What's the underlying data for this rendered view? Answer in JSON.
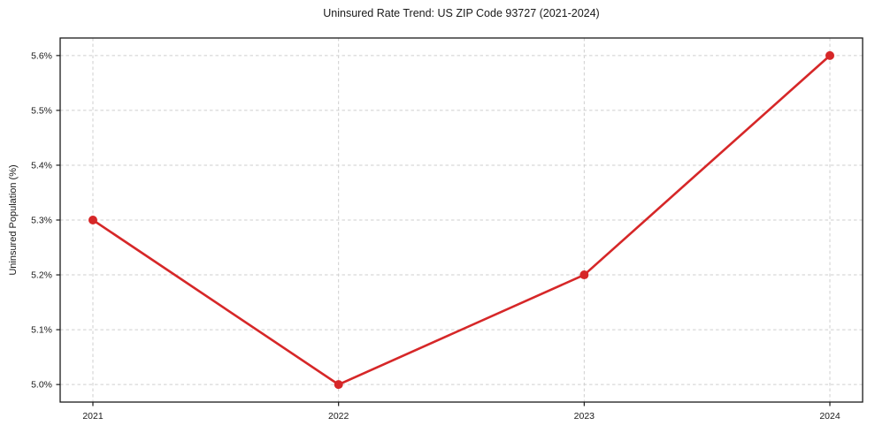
{
  "chart_data": {
    "type": "line",
    "title": "Uninsured Rate Trend: US ZIP Code 93727 (2021-2024)",
    "xlabel": "",
    "ylabel": "Uninsured Population (%)",
    "x": [
      "2021",
      "2022",
      "2023",
      "2024"
    ],
    "values": [
      5.3,
      5.0,
      5.2,
      5.6
    ],
    "unit": "%",
    "x_tick_labels": [
      "2021",
      "2022",
      "2023",
      "2024"
    ],
    "y_ticks": [
      5.0,
      5.1,
      5.2,
      5.3,
      5.4,
      5.5,
      5.6
    ],
    "y_tick_labels": [
      "5.0%",
      "5.1%",
      "5.2%",
      "5.3%",
      "5.4%",
      "5.5%",
      "5.6%"
    ],
    "ylim": [
      4.968,
      5.632
    ],
    "grid": "both-dashed",
    "legend": "none",
    "colors": {
      "line": "#d62728",
      "marker": "#d62728",
      "grid": "#cfcfcf",
      "axis": "#1a1a1a",
      "background": "#ffffff"
    }
  }
}
